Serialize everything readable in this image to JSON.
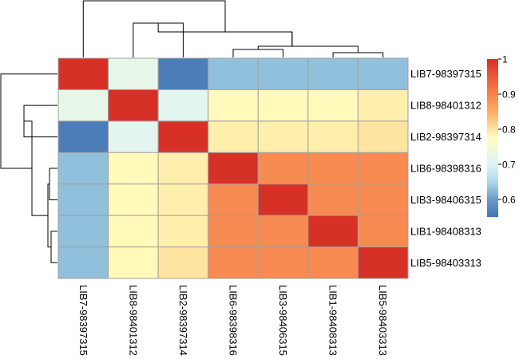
{
  "chart_data": {
    "type": "heatmap",
    "rows": [
      "LIB7-98397315",
      "LIB8-98401312",
      "LIB2-98397314",
      "LIB6-98398316",
      "LIB3-98406315",
      "LIB1-98408313",
      "LIB5-98403313"
    ],
    "columns": [
      "LIB7-98397315",
      "LIB8-98401312",
      "LIB2-98397314",
      "LIB6-98398316",
      "LIB3-98406315",
      "LIB1-98408313",
      "LIB5-98403313"
    ],
    "values": [
      [
        1.0,
        0.72,
        0.56,
        0.63,
        0.63,
        0.63,
        0.63
      ],
      [
        0.72,
        1.0,
        0.71,
        0.78,
        0.78,
        0.78,
        0.79
      ],
      [
        0.56,
        0.71,
        1.0,
        0.79,
        0.79,
        0.79,
        0.8
      ],
      [
        0.63,
        0.78,
        0.79,
        1.0,
        0.89,
        0.89,
        0.89
      ],
      [
        0.63,
        0.78,
        0.79,
        0.89,
        1.0,
        0.89,
        0.89
      ],
      [
        0.63,
        0.78,
        0.79,
        0.89,
        0.89,
        1.0,
        0.89
      ],
      [
        0.63,
        0.78,
        0.8,
        0.89,
        0.89,
        0.89,
        1.0
      ]
    ],
    "color_scale": {
      "min": 0.55,
      "max": 1.0,
      "stops": [
        {
          "value": 0.55,
          "color": "#4575b4"
        },
        {
          "value": 0.6,
          "color": "#6a9bc8"
        },
        {
          "value": 0.65,
          "color": "#abd9e9"
        },
        {
          "value": 0.7,
          "color": "#e0f3f8"
        },
        {
          "value": 0.775,
          "color": "#ffffbf"
        },
        {
          "value": 0.85,
          "color": "#fdae61"
        },
        {
          "value": 0.925,
          "color": "#f46d43"
        },
        {
          "value": 1.0,
          "color": "#d73027"
        }
      ]
    },
    "legend": {
      "ticks": [
        0.6,
        0.7,
        0.8,
        0.9,
        1
      ],
      "tick_labels": [
        "0.6",
        "0.7",
        "0.8",
        "0.9",
        "1"
      ],
      "placement": "right"
    },
    "cell_border_color": "#a0a0a0",
    "dendrograms": {
      "row_merge_order": [
        [
          "LIB6-98398316",
          "LIB3-98406315",
          "LIB1-98408313",
          "LIB5-98403313"
        ],
        [
          "LIB8-98401312",
          "LIB2-98397314"
        ],
        [
          "LIB7-98397315"
        ]
      ],
      "column_merge_order": [
        [
          "LIB6-98398316",
          "LIB3-98406315",
          "LIB1-98408313",
          "LIB5-98403313"
        ],
        [
          "LIB8-98401312",
          "LIB2-98397314"
        ],
        [
          "LIB7-98397315"
        ]
      ]
    }
  }
}
